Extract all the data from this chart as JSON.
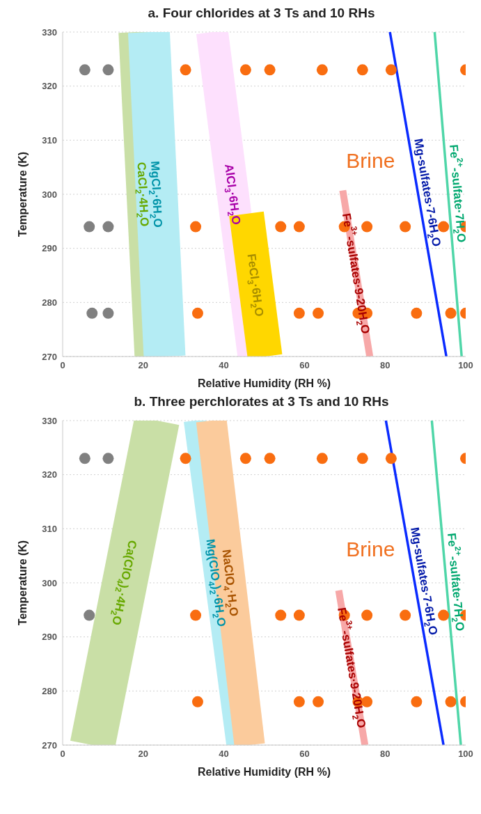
{
  "chart_data": [
    {
      "type": "scatter",
      "title": "a. Four chlorides at 3 Ts and 10 RHs",
      "xlabel": "Relative Humidity (RH %)",
      "ylabel": "Temperature (K)",
      "xlim": [
        0,
        100
      ],
      "xticks": [
        0,
        20,
        40,
        60,
        80,
        100
      ],
      "ylim": [
        270,
        330
      ],
      "yticks": [
        270,
        280,
        290,
        300,
        310,
        320,
        330
      ],
      "grid": "y",
      "marker": "circle",
      "series": [
        {
          "type": "line",
          "marker": "none",
          "name": "CaCl$_{2}$·4H$_{2}$O",
          "color": "#c9dfa6",
          "x": [
            18.0,
            22.0
          ],
          "values": [
            330,
            270
          ]
        },
        {
          "type": "line",
          "marker": "none",
          "name": "MgCl$_{2}$·6H$_{2}$O",
          "color": "#b4ecf4",
          "x": [
            21.4,
            25.3
          ],
          "values": [
            330,
            270
          ]
        },
        {
          "type": "line",
          "marker": "none",
          "name": "AlCl$_{3}$·6H$_{2}$O",
          "color": "#fde0fd",
          "x": [
            37.1,
            47.4
          ],
          "values": [
            330,
            270
          ]
        },
        {
          "type": "line",
          "marker": "none",
          "name": "FeCl$_{3}$·6H$_{2}$O",
          "color": "#ffd700",
          "x": [
            45.6,
            50.2
          ],
          "values": [
            296.4,
            270
          ]
        },
        {
          "type": "line",
          "marker": "none",
          "name": "Fe$^{3+}$-sulfates·9-20H$_{2}$O",
          "color": "#f7a8a8",
          "x": [
            69.5,
            76.2
          ],
          "values": [
            300.7,
            270
          ]
        },
        {
          "type": "line",
          "marker": "none",
          "name": "Mg-sulfates·7-6H$_{2}$O",
          "color": "#0a2bff",
          "x": [
            81.2,
            95.2
          ],
          "values": [
            330,
            270
          ]
        },
        {
          "type": "line",
          "marker": "none",
          "name": "Fe$^{2+}$-sulfate·7H$_{2}$O",
          "color": "#4fd6a8",
          "x": [
            92.3,
            99.0
          ],
          "values": [
            330,
            270
          ]
        },
        {
          "color": "#808080",
          "x": [
            5.5,
            11.3,
            6.6,
            11.3,
            7.3,
            11.3
          ],
          "values": [
            323,
            323,
            294,
            294,
            278,
            278
          ]
        },
        {
          "color": "#f96d10",
          "x": [
            30.5,
            45.4,
            51.4,
            64.4,
            74.4,
            81.5,
            100,
            33.0,
            54.1,
            58.7,
            69.9,
            75.5,
            85.0,
            94.5,
            100,
            33.5,
            58.7,
            63.4,
            73.3,
            75.5,
            87.8,
            96.3,
            100
          ],
          "values": [
            323,
            323,
            323,
            323,
            323,
            323,
            323,
            294,
            294,
            294,
            294,
            294,
            294,
            294,
            294,
            278,
            278,
            278,
            278,
            278,
            278,
            278,
            278
          ]
        }
      ],
      "annotations": [
        "Brine"
      ]
    },
    {
      "type": "scatter",
      "title": "b. Three perchlorates  at 3 Ts and 10 RHs",
      "xlabel": "Relative Humidity (RH %)",
      "ylabel": "Temperature (K)",
      "xlim": [
        0,
        100
      ],
      "xticks": [
        0,
        20,
        40,
        60,
        80,
        100
      ],
      "ylim": [
        270,
        330
      ],
      "yticks": [
        270,
        280,
        290,
        300,
        310,
        320,
        330
      ],
      "grid": "y",
      "marker": "circle",
      "series": [
        {
          "type": "line",
          "marker": "none",
          "name": "Ca(ClO$_{4}$)$_{2}$·4H$_{2}$O",
          "color": "#c9dfa6",
          "x": [
            23.4,
            7.4
          ],
          "values": [
            330,
            270
          ]
        },
        {
          "type": "line",
          "marker": "none",
          "name": "Mg(ClO$_{4}$)$_{2}$·6H$_{2}$O",
          "color": "#b4ecf4",
          "x": [
            32.8,
            43.4
          ],
          "values": [
            330,
            270
          ]
        },
        {
          "type": "line",
          "marker": "none",
          "name": "NaClO$_{4}$·H$_{2}$O",
          "color": "#fbcb9c",
          "x": [
            36.9,
            46.4
          ],
          "values": [
            330,
            270
          ]
        },
        {
          "type": "line",
          "marker": "none",
          "name": "Fe$^{3+}$-sulfates·9-20H$_{2}$O",
          "color": "#f7a8a8",
          "x": [
            68.5,
            75.0
          ],
          "values": [
            298.6,
            270
          ]
        },
        {
          "type": "line",
          "marker": "none",
          "name": "Mg-sulfates·7-6H$_{2}$O",
          "color": "#0a2bff",
          "x": [
            80.2,
            94.5
          ],
          "values": [
            330,
            270
          ]
        },
        {
          "type": "line",
          "marker": "none",
          "name": "Fe$^{2+}$-sulfate·7H$_{2}$O",
          "color": "#4fd6a8",
          "x": [
            91.6,
            98.8
          ],
          "values": [
            330,
            270
          ]
        },
        {
          "color": "#808080",
          "x": [
            5.5,
            11.3,
            6.6
          ],
          "values": [
            323,
            323,
            294
          ]
        },
        {
          "color": "#f96d10",
          "x": [
            30.5,
            45.4,
            51.4,
            64.4,
            74.4,
            81.5,
            100,
            33.0,
            54.1,
            58.7,
            69.9,
            75.5,
            85.0,
            94.5,
            100,
            33.5,
            58.7,
            63.4,
            73.3,
            75.5,
            87.8,
            96.3,
            100
          ],
          "values": [
            323,
            323,
            323,
            323,
            323,
            323,
            323,
            294,
            294,
            294,
            294,
            294,
            294,
            294,
            294,
            278,
            278,
            278,
            278,
            278,
            278,
            278,
            278
          ]
        }
      ],
      "annotations": [
        "Brine"
      ]
    }
  ]
}
